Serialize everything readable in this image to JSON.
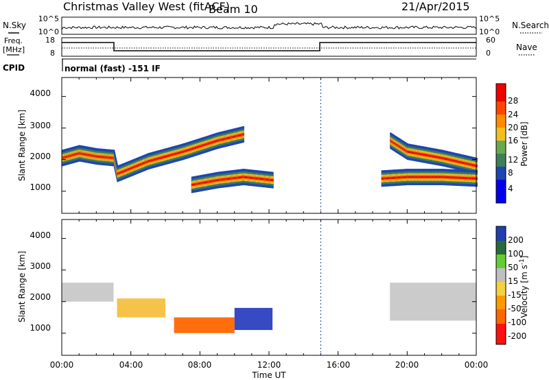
{
  "header": {
    "title": "Christmas Valley West (fitACF)",
    "beam": "Beam 10",
    "date": "21/Apr/2015"
  },
  "top_panels": {
    "nsky": {
      "label": "N.Sky",
      "right_label": "N.Search",
      "left_ticks": [
        "10^5",
        "10^0"
      ],
      "right_ticks": [
        "10^5",
        "10^0"
      ]
    },
    "freq": {
      "label_line1": "Freq.",
      "label_line2": "[MHz]",
      "right_label": "Nave",
      "left_ticks": [
        "18",
        "8"
      ],
      "right_ticks": [
        "60",
        "0"
      ]
    },
    "cpid": {
      "label": "CPID",
      "text": "normal (fast) -151 IF"
    }
  },
  "chart_data": [
    {
      "type": "heatmap",
      "title": "",
      "xlabel": "Time UT",
      "ylabel": "Slant Range [km]",
      "x_ticks": [
        "00:00",
        "04:00",
        "08:00",
        "12:00",
        "16:00",
        "20:00",
        "00:00"
      ],
      "y_ticks": [
        "1000",
        "2000",
        "3000",
        "4000"
      ],
      "colorbar": {
        "label": "Power [dB]",
        "ticks": [
          "28",
          "24",
          "20",
          "16",
          "12",
          "8",
          "4"
        ],
        "colors": [
          "#0000ee",
          "#1f46b0",
          "#3f7f58",
          "#6aa84f",
          "#f0c020",
          "#ff8c00",
          "#ff4500",
          "#ee0000"
        ]
      },
      "bands": [
        {
          "name": "",
          "x_hours": [
            0,
            1,
            2,
            3,
            3.2,
            5,
            7,
            9,
            10.5
          ],
          "y_km": [
            2050,
            2200,
            2100,
            2050,
            1550,
            1950,
            2250,
            2600,
            2800
          ]
        },
        {
          "name": "",
          "x_hours": [
            7.5,
            9,
            10.5,
            12.2
          ],
          "y_km": [
            1200,
            1350,
            1450,
            1350
          ]
        },
        {
          "name": "",
          "x_hours": [
            19,
            20,
            22,
            24
          ],
          "y_km": [
            2600,
            2250,
            2050,
            1800
          ]
        },
        {
          "name": "",
          "x_hours": [
            18.5,
            20,
            22,
            24
          ],
          "y_km": [
            1400,
            1450,
            1450,
            1400
          ]
        }
      ]
    },
    {
      "type": "heatmap",
      "title": "",
      "xlabel": "Time UT",
      "ylabel": "Slant Range [km]",
      "x_ticks": [
        "00:00",
        "04:00",
        "08:00",
        "12:00",
        "16:00",
        "20:00",
        "00:00"
      ],
      "y_ticks": [
        "1000",
        "2000",
        "3000",
        "4000"
      ],
      "colorbar": {
        "label": "Velocity [m s",
        "label_sup": "-1",
        "label_end": "]",
        "ticks": [
          "200",
          "100",
          "50",
          "15",
          "-15",
          "-50",
          "-100",
          "-200"
        ],
        "colors": [
          "#1f3fb0",
          "#2a6a3a",
          "#66cc33",
          "#bfbfbf",
          "#f5d040",
          "#ff9900",
          "#ff6600",
          "#ff1010"
        ]
      },
      "regions": [
        {
          "name": "",
          "x_hours": [
            0,
            3
          ],
          "y_km": [
            2000,
            2600
          ],
          "color": "#c8c8c8"
        },
        {
          "name": "",
          "x_hours": [
            3.2,
            6
          ],
          "y_km": [
            1500,
            2100
          ],
          "color": "#f5c040"
        },
        {
          "name": "",
          "x_hours": [
            6.5,
            10
          ],
          "y_km": [
            1000,
            1500
          ],
          "color": "#ff6600"
        },
        {
          "name": "",
          "x_hours": [
            10,
            12.2
          ],
          "y_km": [
            1100,
            1800
          ],
          "color": "#2a40c0"
        },
        {
          "name": "",
          "x_hours": [
            19,
            24
          ],
          "y_km": [
            1400,
            2600
          ],
          "color": "#c8c8c8"
        }
      ]
    }
  ]
}
